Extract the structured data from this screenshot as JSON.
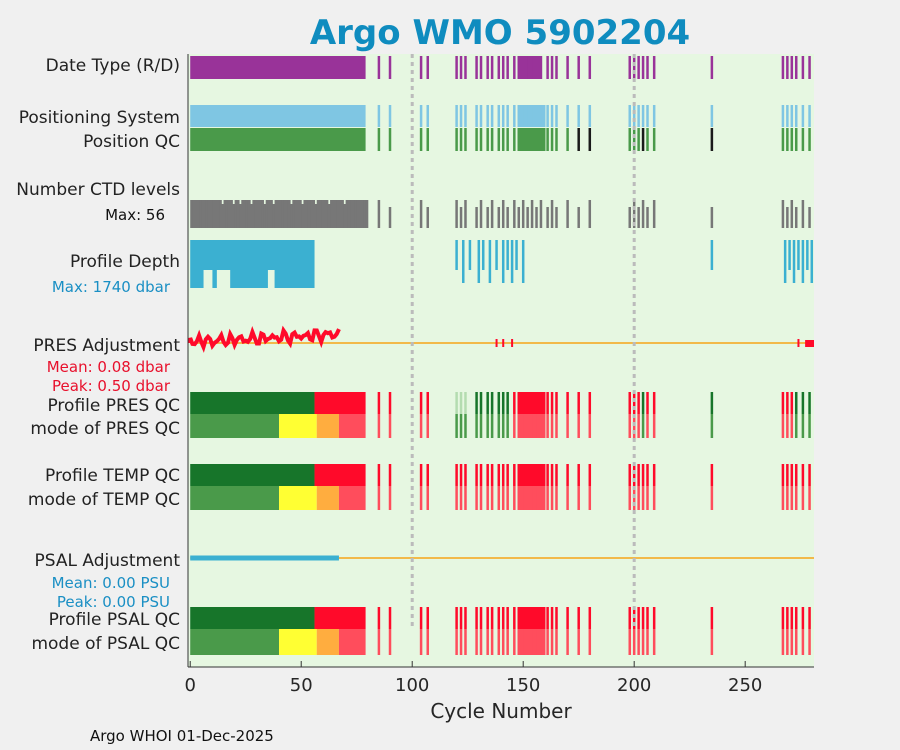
{
  "colors": {
    "background": "#f0f0f0",
    "axes_bg": "#e6f7e1",
    "title": "#0f8cbf",
    "purple": "#993399",
    "light_blue": "#7fc6e3",
    "green_dark": "#17752a",
    "green": "#4a9a4a",
    "black": "#1a1a1a",
    "gray": "#777777",
    "cyan": "#3bb0d1",
    "red": "#ff0a2a",
    "red_light": "#ff4d5c",
    "yellow": "#ffff33",
    "orange": "#ffad3f",
    "line_orange": "#f2b94a",
    "label_red": "#e8102c",
    "label_blue": "#1a8fc4",
    "dotted": "#bbbbbb"
  },
  "chart_data": {
    "type": "timeline",
    "title": "Argo WMO 5902204",
    "xlabel": "Cycle Number",
    "xlim": [
      -1,
      281
    ],
    "xticks": [
      0,
      50,
      100,
      150,
      200,
      250
    ],
    "vertical_markers": [
      100,
      200
    ],
    "footer": "Argo WHOI 01-Dec-2025",
    "rows": {
      "date_type": {
        "label": "Date Type (R/D)"
      },
      "positioning": {
        "label": "Positioning System"
      },
      "position_qc": {
        "label": "Position QC"
      },
      "ctd_levels": {
        "label": "Number CTD levels",
        "max_label": "Max: 56",
        "max": 56
      },
      "profile_depth": {
        "label": "Profile Depth",
        "max_label": "Max: 1740 dbar",
        "max": 1740
      },
      "pres_adjust": {
        "label": "PRES Adjustment",
        "mean_label": "Mean: 0.08 dbar",
        "peak_label": "Peak: 0.50 dbar"
      },
      "profile_pres_qc": {
        "label": "Profile PRES QC"
      },
      "mode_pres_qc": {
        "label": "mode of PRES QC"
      },
      "profile_temp_qc": {
        "label": "Profile TEMP QC"
      },
      "mode_temp_qc": {
        "label": "mode of TEMP QC"
      },
      "psal_adjust": {
        "label": "PSAL Adjustment",
        "mean_label": "Mean: 0.00 PSU",
        "peak_label": "Peak: 0.00 PSU"
      },
      "profile_psal_qc": {
        "label": "Profile PSAL QC"
      },
      "mode_psal_qc": {
        "label": "mode of PSAL QC"
      }
    },
    "cycles_main_block": [
      0,
      79
    ],
    "cycles_sparse": [
      85,
      90,
      104,
      107,
      120,
      122,
      124,
      129,
      131,
      134,
      136,
      139,
      141,
      143,
      146,
      148,
      150,
      152,
      154,
      156,
      158,
      161,
      163,
      165,
      170,
      175,
      180,
      198,
      200,
      202,
      204,
      206,
      209,
      235,
      267,
      269,
      271,
      273,
      276,
      279
    ],
    "depth_block_cycles": [
      0,
      56
    ],
    "depth_sparse_cycles": [
      120,
      123,
      126,
      130,
      132,
      135,
      138,
      141,
      143,
      145,
      147,
      150,
      235,
      268,
      270,
      272,
      274,
      276,
      278,
      280
    ],
    "pres_qc_segments": [
      {
        "from": 0,
        "to": 56,
        "profile": "green_dark",
        "mode": "green"
      },
      {
        "from": 56,
        "to": 79,
        "profile": "red",
        "mode": "red_light"
      }
    ],
    "mode_qc_sub_segments": [
      {
        "from": 0,
        "to": 40,
        "color": "green"
      },
      {
        "from": 40,
        "to": 57,
        "color": "yellow"
      },
      {
        "from": 57,
        "to": 67,
        "color": "orange"
      },
      {
        "from": 67,
        "to": 79,
        "color": "red_light"
      }
    ]
  }
}
